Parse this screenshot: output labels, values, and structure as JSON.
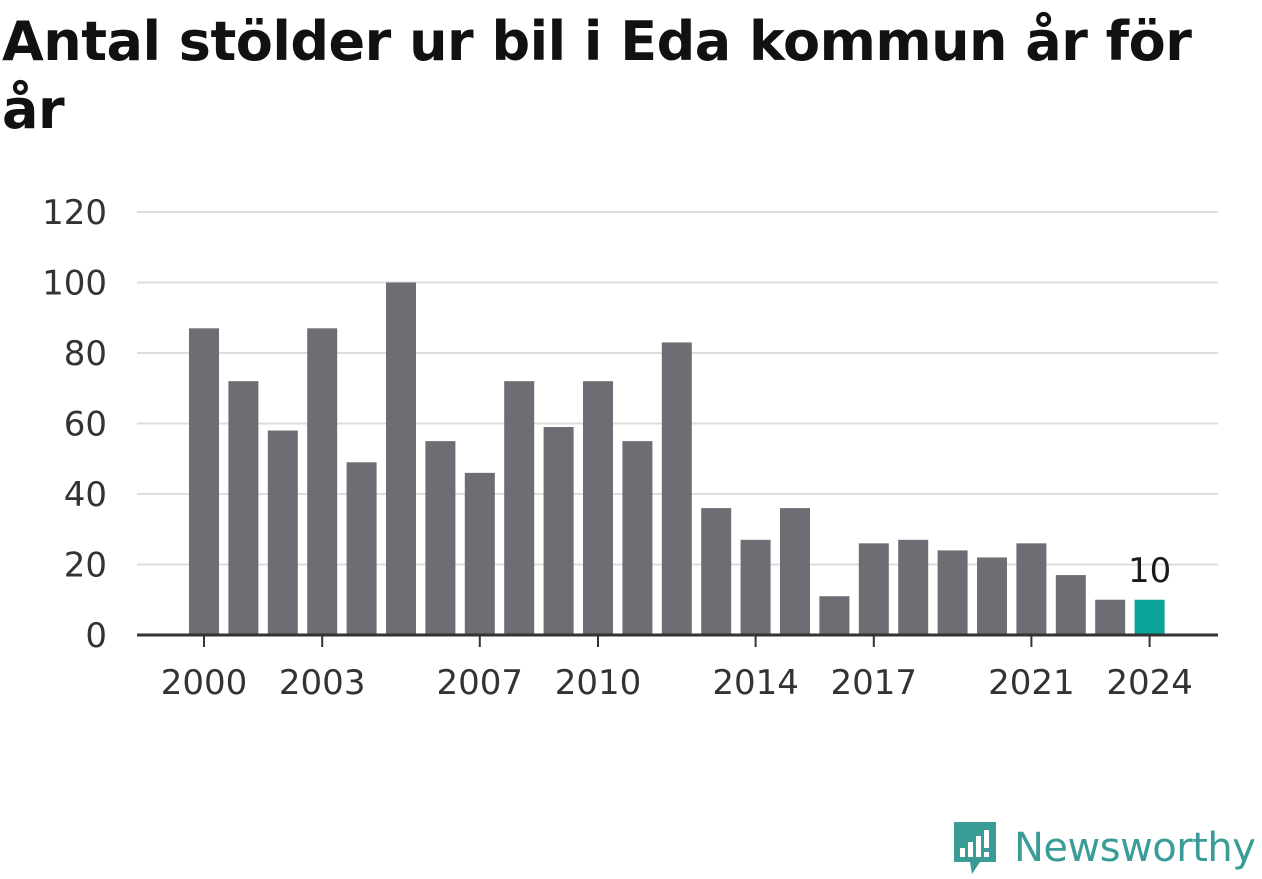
{
  "chart_data": {
    "type": "bar",
    "title": "Antal stölder ur bil i Eda kommun år för år",
    "categories": [
      "2000",
      "2001",
      "2002",
      "2003",
      "2004",
      "2005",
      "2006",
      "2007",
      "2008",
      "2009",
      "2010",
      "2011",
      "2012",
      "2013",
      "2014",
      "2015",
      "2016",
      "2017",
      "2018",
      "2019",
      "2020",
      "2021",
      "2022",
      "2023",
      "2024"
    ],
    "values": [
      87,
      72,
      58,
      87,
      49,
      100,
      55,
      46,
      72,
      59,
      72,
      55,
      83,
      36,
      27,
      36,
      11,
      26,
      27,
      24,
      22,
      26,
      17,
      10,
      10
    ],
    "x_tick_labels": [
      "2000",
      "2003",
      "2007",
      "2010",
      "2014",
      "2017",
      "2021",
      "2024"
    ],
    "y_ticks": [
      0,
      20,
      40,
      60,
      80,
      100,
      120
    ],
    "ylim": [
      0,
      120
    ],
    "xlabel": "",
    "ylabel": "",
    "highlight_index": 24,
    "data_labels": [
      {
        "index": 24,
        "text": "10"
      }
    ],
    "grid": true,
    "colors": {
      "bar": "#6e6d73",
      "highlight": "#0aa399",
      "grid": "#dddddd",
      "axis": "#333333"
    }
  },
  "brand": {
    "name": "Newsworthy",
    "icon": "newsworthy-logo-icon",
    "color": "#3a9c96"
  }
}
